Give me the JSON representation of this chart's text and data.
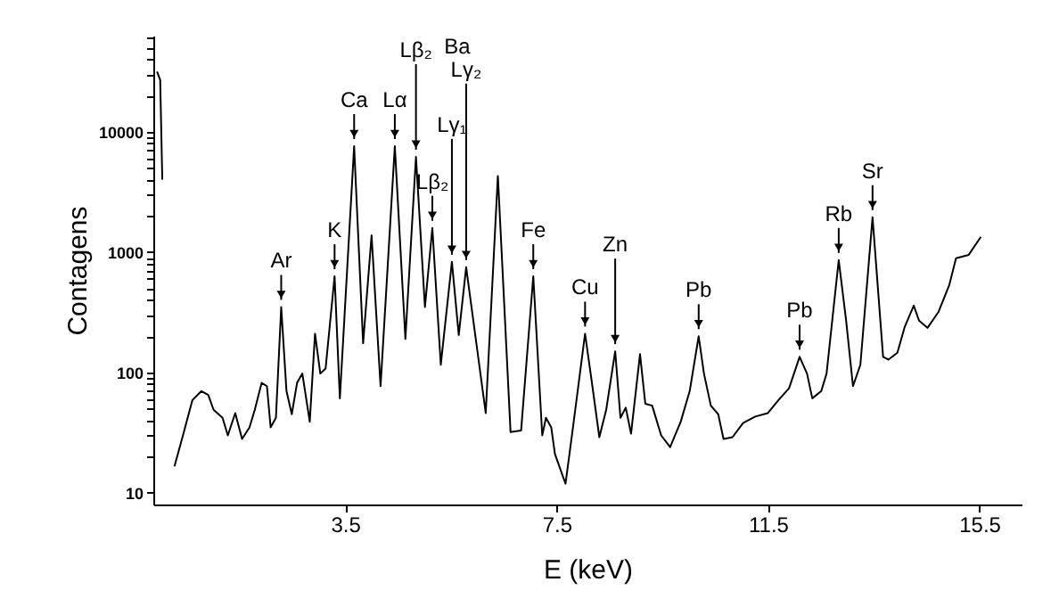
{
  "chart_data": {
    "type": "line",
    "xlabel": "E (keV)",
    "ylabel": "Contagens",
    "log": "y",
    "grid": false,
    "marker": "none",
    "line_style": "solid",
    "xlim": [
      -0.13,
      16.3
    ],
    "xticks": [
      3.5,
      7.5,
      11.5,
      15.5
    ],
    "ylim": [
      8,
      63000
    ],
    "yticks": [
      10,
      {
        "value": 20,
        "label": null
      },
      {
        "value": 30,
        "label": null
      },
      {
        "value": 40,
        "label": null
      },
      {
        "value": 50,
        "label": null
      },
      {
        "value": 60,
        "label": null
      },
      {
        "value": 70,
        "label": null
      },
      {
        "value": 80,
        "label": null
      },
      {
        "value": 90,
        "label": null
      },
      100,
      {
        "value": 200,
        "label": null
      },
      {
        "value": 300,
        "label": null
      },
      {
        "value": 400,
        "label": null
      },
      {
        "value": 500,
        "label": null
      },
      {
        "value": 600,
        "label": null
      },
      {
        "value": 700,
        "label": null
      },
      {
        "value": 800,
        "label": null
      },
      {
        "value": 900,
        "label": null
      },
      1000,
      {
        "value": 2000,
        "label": null
      },
      {
        "value": 3000,
        "label": null
      },
      {
        "value": 4000,
        "label": null
      },
      {
        "value": 5000,
        "label": null
      },
      {
        "value": 6000,
        "label": null
      },
      {
        "value": 7000,
        "label": null
      },
      {
        "value": 8000,
        "label": null
      },
      {
        "value": 9000,
        "label": null
      },
      10000,
      {
        "value": 20000,
        "label": null
      },
      {
        "value": 30000,
        "label": null
      },
      {
        "value": 40000,
        "label": null
      },
      {
        "value": 50000,
        "label": null
      },
      {
        "value": 60000,
        "label": null
      }
    ],
    "series": [
      {
        "color": "#000000",
        "x": [
          -0.06,
          0.0,
          0.04,
          0.11,
          0.21,
          0.27,
          0.44,
          0.61,
          0.78,
          0.91,
          1.01,
          1.18,
          1.28,
          1.42,
          1.55,
          1.69,
          1.79,
          1.92,
          2.02,
          2.09,
          2.19,
          2.29,
          2.39,
          2.49,
          2.59,
          2.69,
          2.83,
          2.93,
          3.03,
          3.13,
          3.3,
          3.4,
          3.67,
          3.84,
          4.0,
          4.17,
          4.44,
          4.64,
          4.84,
          5.01,
          5.15,
          5.31,
          5.52,
          5.65,
          5.79,
          6.16,
          6.39,
          6.63,
          6.83,
          7.06,
          7.23,
          7.3,
          7.4,
          7.47,
          7.67,
          7.8,
          8.04,
          8.17,
          8.31,
          8.44,
          8.61,
          8.71,
          8.81,
          8.91,
          9.08,
          9.18,
          9.31,
          9.48,
          9.65,
          9.85,
          10.02,
          10.19,
          10.29,
          10.42,
          10.56,
          10.66,
          10.83,
          11.03,
          11.26,
          11.5,
          11.7,
          11.9,
          12.1,
          12.24,
          12.34,
          12.51,
          12.61,
          12.84,
          12.98,
          13.11,
          13.25,
          13.48,
          13.68,
          13.78,
          13.95,
          14.09,
          14.26,
          14.36,
          14.52,
          14.73,
          14.93,
          15.06,
          15.3,
          15.53
        ],
        "values": [
          31600,
          27000,
          4000,
          null,
          null,
          16.6,
          31,
          59,
          70,
          65,
          49,
          42,
          30,
          46,
          28,
          35,
          49,
          82,
          77,
          35,
          42,
          350,
          70,
          45,
          82,
          98,
          39,
          210,
          98,
          108,
          630,
          61,
          7600,
          175,
          1380,
          77,
          7600,
          190,
          6200,
          350,
          1590,
          116,
          830,
          205,
          750,
          46,
          4300,
          32,
          33,
          630,
          30,
          42,
          35,
          21,
          11.9,
          32,
          210,
          82,
          29,
          49,
          150,
          42,
          51,
          31,
          142,
          55,
          53,
          30,
          24,
          39,
          70,
          200,
          98,
          53,
          45,
          28,
          29,
          38,
          43,
          46,
          59,
          74,
          135,
          98,
          61,
          70,
          98,
          860,
          270,
          77,
          116,
          1950,
          135,
          128,
          146,
          240,
          360,
          270,
          235,
          320,
          530,
          890,
          950,
          1340
        ]
      }
    ],
    "annotations": [
      {
        "text": "Ca",
        "x": 3.67,
        "y": 7600
      },
      {
        "text": "Lα",
        "x": 4.44,
        "y": 7600
      },
      "Ba",
      {
        "text": "Lβ₂",
        "x": 4.84,
        "y": 6200
      },
      {
        "text": "Lβ₂",
        "x": 5.15,
        "y": 1590
      },
      {
        "text": "Lγ₁",
        "x": 5.52,
        "y": 830
      },
      {
        "text": "Lγ₂",
        "x": 5.79,
        "y": 750
      },
      {
        "text": "K",
        "x": 3.3,
        "y": 630
      },
      {
        "text": "Ar",
        "x": 2.29,
        "y": 350
      },
      {
        "text": "Fe",
        "x": 7.06,
        "y": 630
      },
      {
        "text": "Cu",
        "x": 8.04,
        "y": 210
      },
      {
        "text": "Zn",
        "x": 8.61,
        "y": 150
      },
      {
        "text": "Pb",
        "x": 10.19,
        "y": 200
      },
      {
        "text": "Pb",
        "x": 12.1,
        "y": 135
      },
      {
        "text": "Rb",
        "x": 12.84,
        "y": 860
      },
      {
        "text": "Sr",
        "x": 13.48,
        "y": 1950
      }
    ]
  }
}
